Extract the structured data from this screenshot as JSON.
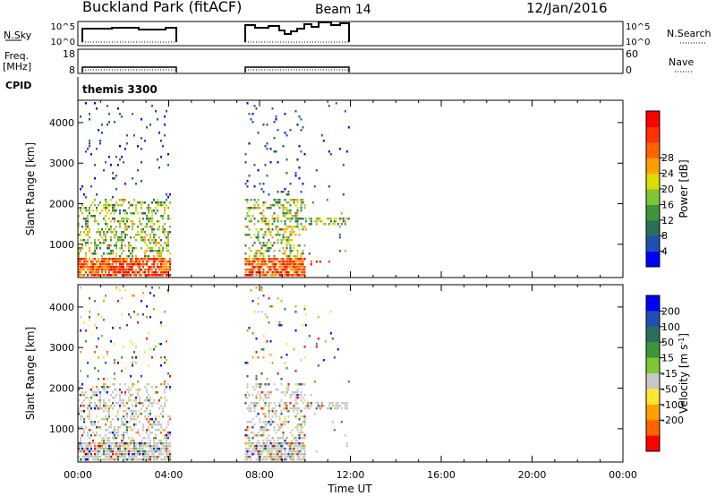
{
  "header": {
    "title": "Buckland Park (fitACF)",
    "beam": "Beam 14",
    "date": "12/Jan/2016"
  },
  "status_panels": {
    "nsky_label": "N.Sky",
    "nsky_ticks": [
      "10^5",
      "10^0"
    ],
    "nsearch_label": "N.Search",
    "nsearch_ticks": [
      "10^5",
      "10^0"
    ],
    "freq_label": "Freq.",
    "freq_unit": "[MHz]",
    "freq_ticks": [
      "18",
      "8"
    ],
    "nave_label": "Nave",
    "nave_ticks": [
      "60",
      "0"
    ],
    "cpid_label": "CPID",
    "cpid_value": "themis 3300"
  },
  "chart_data": [
    {
      "type": "heatmap",
      "panel": "power",
      "ylabel": "Slant Range [km]",
      "xlabel": "",
      "x_ticks": [
        "00:00",
        "04:00",
        "08:00",
        "12:00",
        "16:00",
        "20:00",
        "00:00"
      ],
      "x_range_hours": [
        0,
        24
      ],
      "ylim_km": [
        180,
        4550
      ],
      "y_ticks": [
        1000,
        2000,
        3000,
        4000
      ],
      "colorbar": {
        "label": "Power [dB]",
        "ticks": [
          4,
          8,
          12,
          16,
          20,
          24,
          28
        ],
        "colors": [
          "#0000ff",
          "#1e50b4",
          "#2d6e5a",
          "#3c963c",
          "#7dc832",
          "#dcdc00",
          "#ffa000",
          "#ff6400",
          "#ff3200",
          "#ff0000"
        ]
      },
      "data_intervals_hours": [
        [
          0.0,
          4.05
        ],
        [
          7.35,
          10.0
        ],
        [
          10.0,
          11.9
        ]
      ]
    },
    {
      "type": "heatmap",
      "panel": "velocity",
      "ylabel": "Slant Range [km]",
      "xlabel": "Time UT",
      "x_ticks": [
        "00:00",
        "04:00",
        "08:00",
        "12:00",
        "16:00",
        "20:00",
        "00:00"
      ],
      "x_range_hours": [
        0,
        24
      ],
      "ylim_km": [
        180,
        4550
      ],
      "y_ticks": [
        1000,
        2000,
        3000,
        4000
      ],
      "colorbar": {
        "label": "Velocity [m s",
        "label_sup": "-1",
        "label_end": "]",
        "ticks": [
          "200",
          "100",
          "50",
          "15",
          "-15",
          "-50",
          "-100",
          "-200"
        ],
        "colors": [
          "#0000ff",
          "#1e50b4",
          "#2d6e5a",
          "#3c963c",
          "#7dc832",
          "#c8c8c8",
          "#ffe632",
          "#ffa000",
          "#ff6400",
          "#ff0000"
        ]
      },
      "data_intervals_hours": [
        [
          0.0,
          4.05
        ],
        [
          7.35,
          10.0
        ],
        [
          10.0,
          11.9
        ]
      ]
    }
  ]
}
